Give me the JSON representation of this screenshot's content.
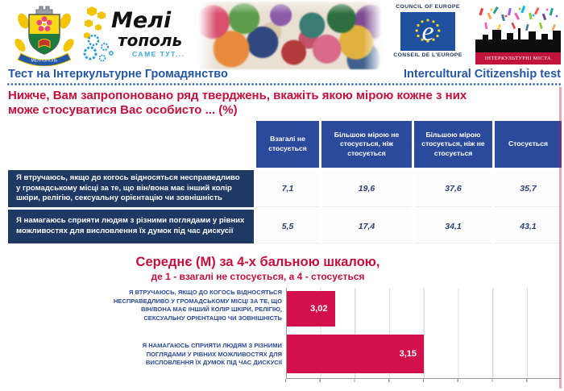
{
  "header": {
    "logos": {
      "coat_of_arms": {
        "ribbon": "МЕЛІТОПОЛЬ"
      },
      "melitopol": {
        "line1": "Мелі",
        "line2": "тополь",
        "tagline": "САМЕ ТУТ..."
      },
      "council_of_europe": {
        "top": "COUNCIL OF EUROPE",
        "bottom": "CONSEIL DE L'EUROPE"
      },
      "intercultural_cities": {
        "banner": "ІНТЕРКУЛЬТУРНІ МІСТА"
      }
    },
    "title_uk": "Тест на Інтеркультурне Громадянство",
    "title_en": "Intercultural Citizenship test"
  },
  "question": {
    "line1": "Нижче, Вам запропоновано ряд тверджень, вкажіть якою мірою кожне з них",
    "line2": "може стосуватися Вас особисто ... (%)"
  },
  "table": {
    "columns": [
      "Взагалі не стосується",
      "Більшою мірою не стосується, ніж стосується",
      "Більшою мірою стосується, ніж не стосується",
      "Стосується"
    ],
    "rows": [
      {
        "label": "Я втручаюсь, якщо до когось відносяться несправедливо у громадському місці за те, що він/вона має інший колір шкіри, релігію, сексуальну орієнтацію чи зовнішність",
        "values": [
          "7,1",
          "19,6",
          "37,6",
          "35,7"
        ]
      },
      {
        "label": "Я намагаюсь сприяти людям з різними поглядами у рівних можливостях для висловлення їх думок під час дискусії",
        "values": [
          "5,5",
          "17,4",
          "34,1",
          "43,1"
        ]
      }
    ]
  },
  "chart_data": {
    "type": "bar",
    "orientation": "horizontal",
    "title": "Середнє (М) за 4-х бальною шкалою,",
    "subtitle": "де 1 - взагалі не стосується, а 4 - стосується",
    "categories": [
      "Я ВТРУЧАЮСЬ, ЯКЩО ДО КОГОСЬ ВІДНОСЯТЬСЯ НЕСПРАВЕДЛИВО У ГРОМАДСЬКОМУ МІСЦІ ЗА ТЕ, ЩО ВІН/ВОНА МАЄ ІНШИЙ КОЛІР ШКІРИ, РЕЛІГІЮ, СЕКСУАЛЬНУ ОРІЄНТАЦІЮ ЧИ ЗОВНІШНІСТЬ",
      "Я НАМАГАЮСЬ СПРИЯТИ ЛЮДЯМ З РІЗНИМИ ПОГЛЯДАМИ У РІВНИХ МОЖЛИВОСТЯХ ДЛЯ ВИСЛОВЛЕННЯ ЇХ ДУМОК ПІД ЧАС ДИСКУСІЇ"
    ],
    "values": [
      3.02,
      3.15
    ],
    "value_labels": [
      "3,02",
      "3,15"
    ],
    "xlim": [
      2.95,
      3.35
    ],
    "gridline_step": 0.05,
    "grid": true,
    "legend": "none",
    "bar_color": "#d2104c"
  },
  "colors": {
    "accent_red": "#c50f3c",
    "title_blue": "#2456a6",
    "table_header_blue": "#2b4a9b",
    "table_label_navy": "#1f3864",
    "coe_blue": "#1e50a0",
    "icc_banner_red": "#c0143c"
  },
  "icons": {
    "coat_of_arms": "melitopol-city-emblem-shield",
    "coe_emblem": "council-of-europe-e-with-stars",
    "icc_emblem": "city-skyline-with-confetti-people",
    "honeycomb": "yellow-hexagon-cluster",
    "gears": "blue-gear-rings"
  }
}
